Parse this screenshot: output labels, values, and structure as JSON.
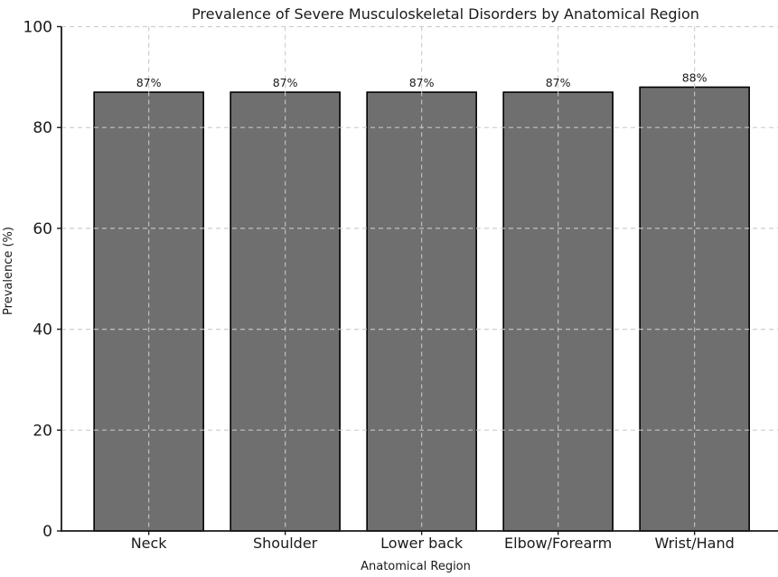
{
  "chart_data": {
    "type": "bar",
    "title": "Prevalence of Severe Musculoskeletal Disorders by Anatomical Region",
    "xlabel": "Anatomical Region",
    "ylabel": "Prevalence (%)",
    "categories": [
      "Neck",
      "Shoulder",
      "Lower back",
      "Elbow/Forearm",
      "Wrist/Hand"
    ],
    "values": [
      87,
      87,
      87,
      87,
      88
    ],
    "bar_labels": [
      "87%",
      "87%",
      "87%",
      "87%",
      "88%"
    ],
    "yticks": [
      0,
      20,
      40,
      60,
      80,
      100
    ],
    "ytick_labels": [
      "0",
      "20",
      "40",
      "60",
      "80",
      "100"
    ],
    "ylim": [
      0,
      100
    ],
    "grid": "dashed",
    "legend_position": "none",
    "colors": {
      "bar": "#6f6f6f",
      "bar_edge": "#000000",
      "grid": "#c9c9c9",
      "text": "#1a1a1a",
      "background": "#ffffff"
    }
  }
}
